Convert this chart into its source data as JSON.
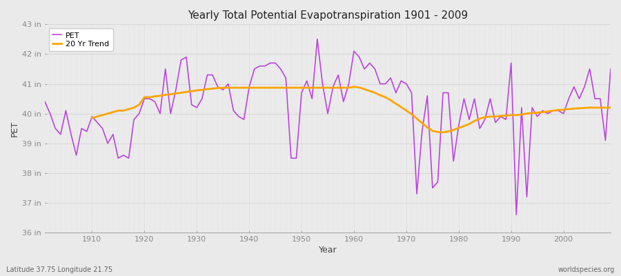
{
  "title": "Yearly Total Potential Evapotranspiration 1901 - 2009",
  "xlabel": "Year",
  "ylabel": "PET",
  "subtitle_left": "Latitude 37.75 Longitude 21.75",
  "subtitle_right": "worldspecies.org",
  "pet_color": "#BB44DD",
  "trend_color": "#FFA500",
  "bg_color": "#EAEAEA",
  "plot_bg_color": "#EBEBEB",
  "grid_h_color": "#D8D8D8",
  "grid_v_color": "#D0D0D0",
  "ylim": [
    36,
    43
  ],
  "xlim": [
    1901,
    2009
  ],
  "yticks": [
    36,
    37,
    38,
    39,
    40,
    41,
    42,
    43
  ],
  "ytick_labels": [
    "36 in",
    "37 in",
    "38 in",
    "39 in",
    "40 in",
    "41 in",
    "42 in",
    "43 in"
  ],
  "xticks": [
    1910,
    1920,
    1930,
    1940,
    1950,
    1960,
    1970,
    1980,
    1990,
    2000
  ],
  "years": [
    1901,
    1902,
    1903,
    1904,
    1905,
    1906,
    1907,
    1908,
    1909,
    1910,
    1911,
    1912,
    1913,
    1914,
    1915,
    1916,
    1917,
    1918,
    1919,
    1920,
    1921,
    1922,
    1923,
    1924,
    1925,
    1926,
    1927,
    1928,
    1929,
    1930,
    1931,
    1932,
    1933,
    1934,
    1935,
    1936,
    1937,
    1938,
    1939,
    1940,
    1941,
    1942,
    1943,
    1944,
    1945,
    1946,
    1947,
    1948,
    1949,
    1950,
    1951,
    1952,
    1953,
    1954,
    1955,
    1956,
    1957,
    1958,
    1959,
    1960,
    1961,
    1962,
    1963,
    1964,
    1965,
    1966,
    1967,
    1968,
    1969,
    1970,
    1971,
    1972,
    1973,
    1974,
    1975,
    1976,
    1977,
    1978,
    1979,
    1980,
    1981,
    1982,
    1983,
    1984,
    1985,
    1986,
    1987,
    1988,
    1989,
    1990,
    1991,
    1992,
    1993,
    1994,
    1995,
    1996,
    1997,
    1998,
    1999,
    2000,
    2001,
    2002,
    2003,
    2004,
    2005,
    2006,
    2007,
    2008,
    2009
  ],
  "pet_values": [
    40.4,
    40.0,
    39.5,
    39.3,
    40.1,
    39.3,
    38.6,
    39.5,
    39.4,
    39.9,
    39.7,
    39.5,
    39.0,
    39.3,
    38.5,
    38.6,
    38.5,
    39.8,
    40.0,
    40.5,
    40.5,
    40.4,
    40.0,
    41.5,
    40.0,
    40.8,
    41.8,
    41.9,
    40.3,
    40.2,
    40.5,
    41.3,
    41.3,
    40.9,
    40.8,
    41.0,
    40.1,
    39.9,
    39.8,
    40.9,
    41.5,
    41.6,
    41.6,
    41.7,
    41.7,
    41.5,
    41.2,
    38.5,
    38.5,
    40.7,
    41.1,
    40.5,
    42.5,
    41.0,
    40.0,
    40.9,
    41.3,
    40.4,
    41.0,
    42.1,
    41.9,
    41.5,
    41.7,
    41.5,
    41.0,
    41.0,
    41.2,
    40.7,
    41.1,
    41.0,
    40.7,
    37.3,
    39.4,
    40.6,
    37.5,
    37.7,
    40.7,
    40.7,
    38.4,
    39.6,
    40.5,
    39.8,
    40.5,
    39.5,
    39.8,
    40.5,
    39.7,
    39.9,
    39.8,
    41.7,
    36.6,
    40.2,
    37.2,
    40.2,
    39.9,
    40.1,
    40.0,
    40.1,
    40.1,
    40.0,
    40.5,
    40.9,
    40.5,
    40.9,
    41.5,
    40.5,
    40.5,
    39.1,
    41.5
  ],
  "trend_values": [
    null,
    null,
    null,
    null,
    null,
    null,
    null,
    null,
    null,
    39.85,
    39.9,
    39.95,
    40.0,
    40.05,
    40.1,
    40.1,
    40.15,
    40.2,
    40.3,
    40.55,
    40.55,
    40.58,
    40.6,
    40.63,
    40.65,
    40.68,
    40.7,
    40.73,
    40.75,
    40.78,
    40.8,
    40.82,
    40.84,
    40.86,
    40.87,
    40.87,
    40.87,
    40.87,
    40.87,
    40.87,
    40.87,
    40.87,
    40.87,
    40.87,
    40.87,
    40.87,
    40.87,
    40.87,
    40.87,
    40.87,
    40.87,
    40.87,
    40.87,
    40.87,
    40.87,
    40.87,
    40.87,
    40.87,
    40.87,
    40.9,
    40.88,
    40.82,
    40.76,
    40.7,
    40.62,
    40.55,
    40.45,
    40.33,
    40.22,
    40.1,
    39.98,
    39.83,
    39.68,
    39.53,
    39.42,
    39.38,
    39.37,
    39.4,
    39.45,
    39.52,
    39.58,
    39.65,
    39.75,
    39.83,
    39.88,
    39.9,
    39.9,
    39.92,
    39.93,
    39.95,
    39.95,
    39.97,
    40.0,
    40.02,
    40.03,
    40.05,
    40.07,
    40.1,
    40.12,
    40.13,
    40.15,
    40.17,
    40.18,
    40.19,
    40.2,
    40.2,
    40.2,
    40.2,
    40.2
  ]
}
